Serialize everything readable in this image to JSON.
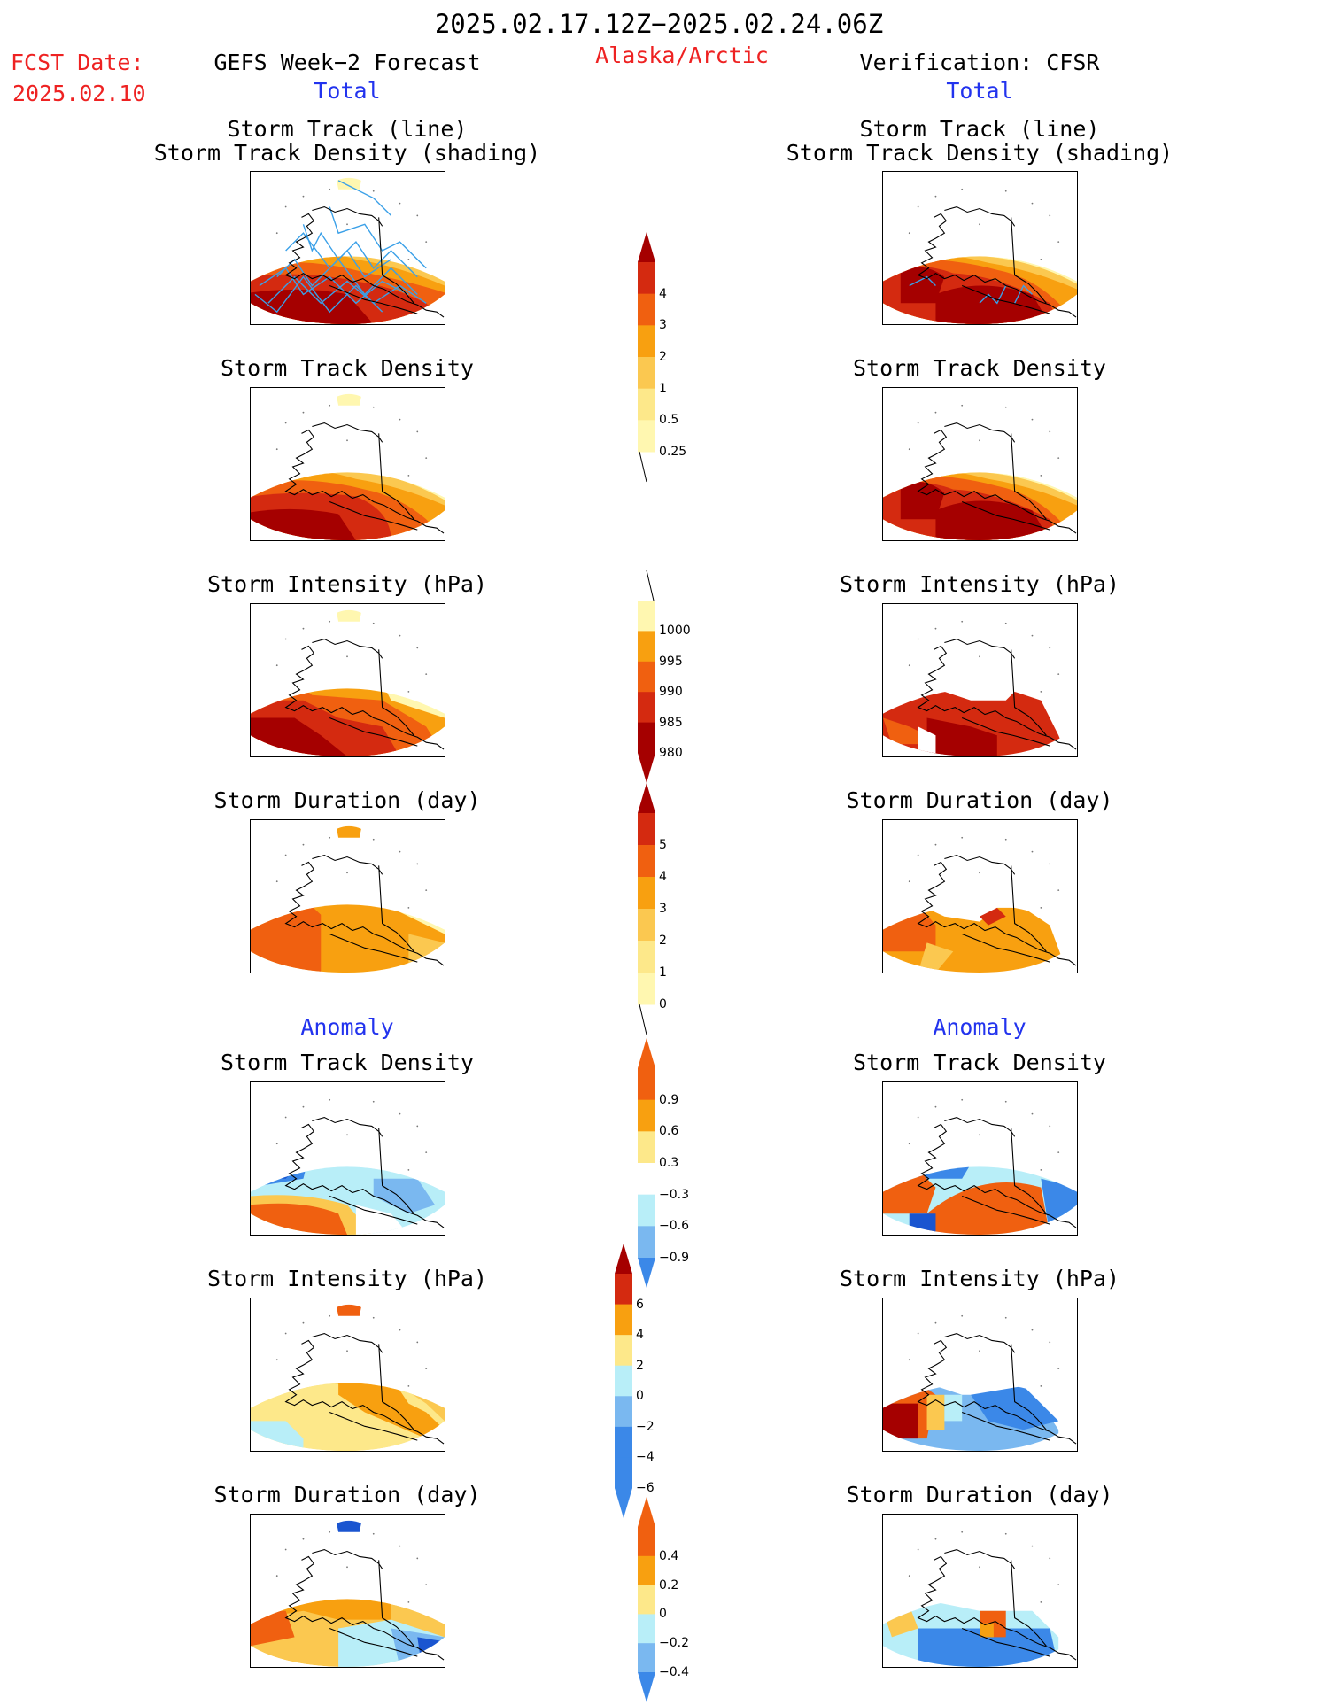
{
  "header": {
    "period": "2025.02.17.12Z−2025.02.24.06Z",
    "fcst_label": "FCST Date:",
    "fcst_date": "2025.02.10",
    "left_title": "GEFS Week−2 Forecast",
    "region": "Alaska/Arctic",
    "right_title": "Verification: CFSR"
  },
  "sections": {
    "total": "Total",
    "anomaly": "Anomaly"
  },
  "panels": {
    "track_line": "Storm Track (line)",
    "track_shading": "Storm Track Density (shading)",
    "density": "Storm Track Density",
    "intensity": "Storm Intensity (hPa)",
    "duration": "Storm Duration (day)"
  },
  "colorbars": {
    "total_density": {
      "labels": [
        "4",
        "3",
        "2",
        "1",
        "0.5",
        "0.25"
      ]
    },
    "total_intensity": {
      "labels": [
        "1000",
        "995",
        "990",
        "985",
        "980"
      ]
    },
    "total_duration": {
      "labels": [
        "5",
        "4",
        "3",
        "2",
        "1",
        "0"
      ]
    },
    "anom_density": {
      "labels": [
        "0.9",
        "0.6",
        "0.3",
        "−0.3",
        "−0.6",
        "−0.9"
      ]
    },
    "anom_intensity": {
      "labels": [
        "6",
        "4",
        "2",
        "0",
        "−2",
        "−4",
        "−6"
      ]
    },
    "anom_duration": {
      "labels": [
        "0.4",
        "0.2",
        "0",
        "−0.2",
        "−0.4"
      ]
    }
  },
  "colors": {
    "dark_red": "#a50000",
    "red": "#d42a10",
    "red_orange": "#f06010",
    "orange": "#f8a010",
    "light_orange": "#fbc850",
    "pale_yellow": "#fff7b0",
    "light_blue": "#b8eef8",
    "mid_blue": "#7ab8f0",
    "blue": "#3b88e8",
    "dark_blue": "#1a55d0",
    "track_line": "#3aa0e8"
  }
}
